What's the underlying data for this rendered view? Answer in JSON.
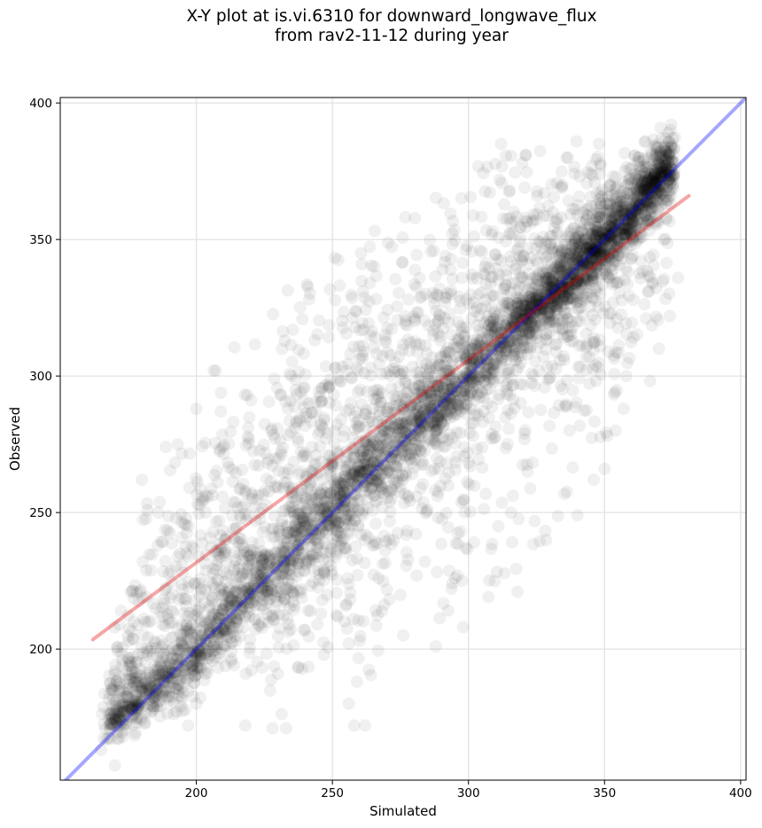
{
  "chart_data": {
    "type": "scatter",
    "title_line1": "X-Y plot at is.vi.6310 for downward_longwave_flux",
    "title_line2": "from rav2-11-12 during year",
    "xlabel": "Simulated",
    "ylabel": "Observed",
    "xlim": [
      150,
      402
    ],
    "ylim": [
      152,
      402
    ],
    "xticks": [
      200,
      250,
      300,
      350,
      400
    ],
    "yticks": [
      200,
      250,
      300,
      350,
      400
    ],
    "grid": true,
    "point_color": "#000000",
    "point_alpha": 0.06,
    "identity_line": {
      "x": [
        150,
        402
      ],
      "y": [
        150,
        402
      ],
      "color": "#0000ff"
    },
    "regression_line": {
      "x": [
        162,
        381
      ],
      "y": [
        203.5,
        366
      ],
      "color": "#e60000"
    },
    "density_ridge": [
      [
        162,
        168
      ],
      [
        175,
        180
      ],
      [
        190,
        192
      ],
      [
        200,
        201
      ],
      [
        210,
        212
      ],
      [
        220,
        222
      ],
      [
        230,
        232
      ],
      [
        240,
        242
      ],
      [
        250,
        250
      ],
      [
        260,
        262
      ],
      [
        270,
        270
      ],
      [
        280,
        282
      ],
      [
        290,
        290
      ],
      [
        300,
        300
      ],
      [
        310,
        310
      ],
      [
        320,
        320
      ],
      [
        330,
        330
      ],
      [
        340,
        338
      ],
      [
        350,
        348
      ],
      [
        360,
        358
      ],
      [
        370,
        372
      ],
      [
        376,
        378
      ]
    ],
    "scatter_envelope_upper": [
      [
        162,
        175
      ],
      [
        180,
        250
      ],
      [
        190,
        290
      ],
      [
        200,
        290
      ],
      [
        210,
        310
      ],
      [
        220,
        315
      ],
      [
        230,
        330
      ],
      [
        240,
        335
      ],
      [
        250,
        345
      ],
      [
        260,
        350
      ],
      [
        270,
        356
      ],
      [
        280,
        360
      ],
      [
        290,
        372
      ],
      [
        300,
        375
      ],
      [
        310,
        380
      ],
      [
        320,
        382
      ],
      [
        330,
        385
      ],
      [
        340,
        386
      ],
      [
        350,
        386
      ],
      [
        360,
        386
      ],
      [
        370,
        388
      ],
      [
        376,
        390
      ]
    ],
    "scatter_envelope_lower": [
      [
        162,
        165
      ],
      [
        180,
        172
      ],
      [
        190,
        172
      ],
      [
        200,
        178
      ],
      [
        210,
        192
      ],
      [
        220,
        190
      ],
      [
        230,
        172
      ],
      [
        240,
        190
      ],
      [
        250,
        200
      ],
      [
        260,
        172
      ],
      [
        270,
        200
      ],
      [
        280,
        205
      ],
      [
        290,
        205
      ],
      [
        300,
        210
      ],
      [
        310,
        220
      ],
      [
        320,
        230
      ],
      [
        330,
        240
      ],
      [
        340,
        262
      ],
      [
        350,
        270
      ],
      [
        360,
        280
      ],
      [
        370,
        300
      ],
      [
        376,
        335
      ]
    ],
    "outliers": [
      [
        218,
        172
      ],
      [
        228,
        171
      ],
      [
        233,
        171
      ],
      [
        258,
        172
      ],
      [
        262,
        172
      ],
      [
        256,
        180
      ],
      [
        259,
        188
      ],
      [
        230,
        191
      ],
      [
        240,
        207
      ],
      [
        165,
        163
      ],
      [
        171,
        167
      ],
      [
        176,
        178
      ],
      [
        172,
        185
      ],
      [
        197,
        172
      ],
      [
        200,
        180
      ],
      [
        256,
        202
      ],
      [
        260,
        203
      ],
      [
        276,
        205
      ],
      [
        288,
        201
      ],
      [
        298,
        208
      ],
      [
        318,
        221
      ],
      [
        340,
        249
      ],
      [
        346,
        262
      ],
      [
        350,
        266
      ],
      [
        357,
        288
      ],
      [
        354,
        280
      ],
      [
        358,
        300
      ],
      [
        370,
        310
      ],
      [
        374,
        322
      ],
      [
        377,
        336
      ],
      [
        312,
        385
      ],
      [
        321,
        381
      ],
      [
        336,
        380
      ],
      [
        348,
        385
      ],
      [
        365,
        386
      ],
      [
        371,
        387
      ],
      [
        209,
        287
      ],
      [
        200,
        288
      ],
      [
        180,
        262
      ],
      [
        186,
        250
      ],
      [
        195,
        228
      ]
    ]
  }
}
